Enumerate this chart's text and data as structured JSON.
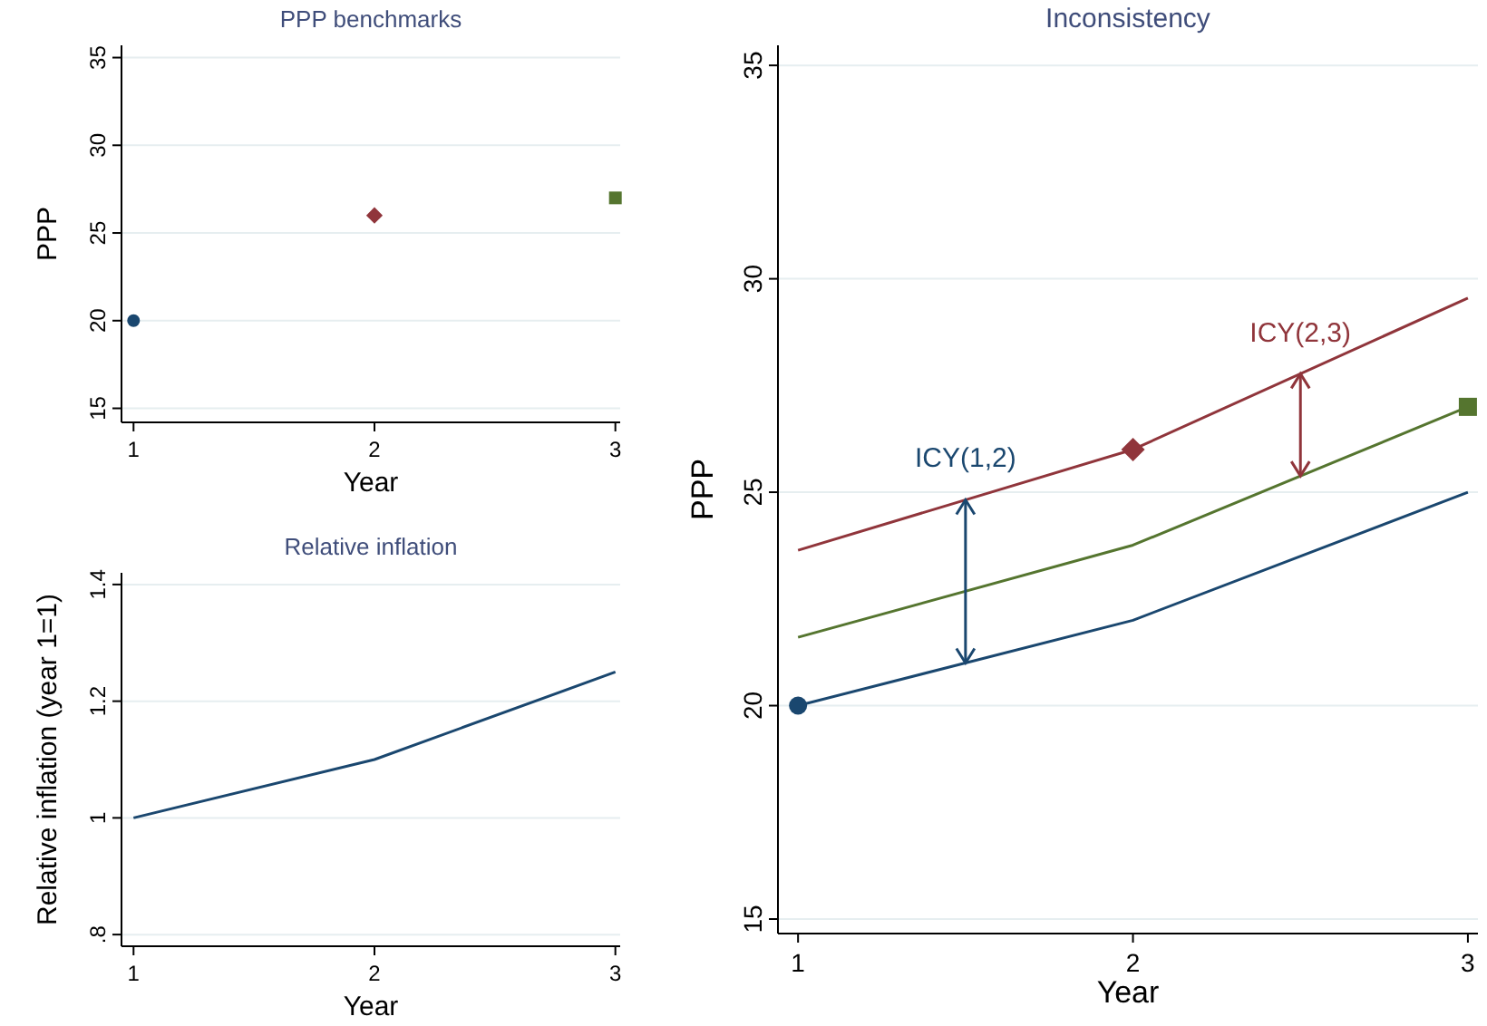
{
  "chart_data": [
    {
      "type": "scatter",
      "title": "PPP benchmarks",
      "xlabel": "Year",
      "ylabel": "PPP",
      "xlim": [
        0.95,
        3.02
      ],
      "xticks": [
        1,
        2,
        3
      ],
      "ylim": [
        14.2,
        35.7
      ],
      "yticks": [
        15,
        20,
        25,
        30,
        35
      ],
      "grid": "y",
      "series": [
        {
          "x": [
            1
          ],
          "values": [
            20
          ],
          "color": "#1a476f",
          "marker": "circle"
        },
        {
          "x": [
            2
          ],
          "values": [
            26
          ],
          "color": "#90353b",
          "marker": "diamond"
        },
        {
          "x": [
            3
          ],
          "values": [
            27
          ],
          "color": "#55752f",
          "marker": "square"
        }
      ]
    },
    {
      "type": "line",
      "title": "Relative inflation",
      "xlabel": "Year",
      "ylabel": "Relative inflation (year 1=1)",
      "xlim": [
        0.95,
        3.02
      ],
      "xticks": [
        1,
        2,
        3
      ],
      "ylim": [
        0.78,
        1.42
      ],
      "yticks": [
        {
          "value": 0.8,
          "label": ".8"
        },
        1,
        1.2,
        1.4
      ],
      "grid": "y",
      "marker": "none",
      "series": [
        {
          "x": [
            1,
            2,
            3
          ],
          "values": [
            1,
            1.1,
            1.25
          ],
          "color": "#1a476f"
        }
      ]
    },
    {
      "type": "line",
      "title": "Inconsistency",
      "xlabel": "Year",
      "ylabel": "PPP",
      "xlim": [
        0.94,
        3.03
      ],
      "xticks": [
        1,
        2,
        3
      ],
      "ylim": [
        14.66,
        35.47
      ],
      "yticks": [
        15,
        20,
        25,
        30,
        35
      ],
      "grid": "y",
      "marker": "none",
      "series": [
        {
          "x": [
            1,
            2,
            3
          ],
          "values": [
            20,
            22,
            25
          ],
          "color": "#1a476f"
        },
        {
          "x": [
            1,
            2,
            3
          ],
          "values": [
            23.64,
            26,
            29.55
          ],
          "color": "#90353b"
        },
        {
          "x": [
            1,
            2,
            3
          ],
          "values": [
            21.6,
            23.76,
            27
          ],
          "color": "#55752f"
        },
        {
          "type": "scatter",
          "x": [
            1
          ],
          "values": [
            20
          ],
          "color": "#1a476f",
          "marker": "circle"
        },
        {
          "type": "scatter",
          "x": [
            2
          ],
          "values": [
            26
          ],
          "color": "#90353b",
          "marker": "diamond"
        },
        {
          "type": "scatter",
          "x": [
            3
          ],
          "values": [
            27
          ],
          "color": "#55752f",
          "marker": "square"
        }
      ],
      "annotations": [
        {
          "text": "ICY(1,2)",
          "x": 1.5,
          "y": 24.82
        },
        {
          "text": "ICY(2,3)",
          "x": 2.5,
          "y": 27.77
        }
      ]
    }
  ]
}
